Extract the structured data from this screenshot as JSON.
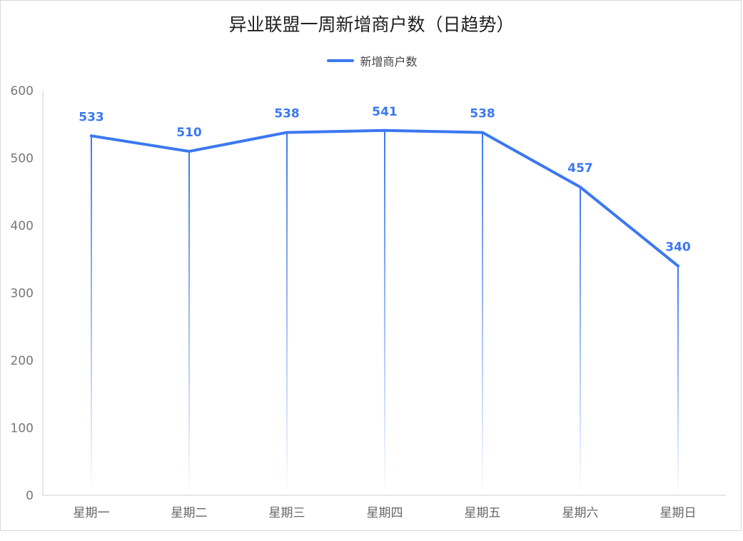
{
  "chart_data": {
    "type": "line",
    "title": "异业联盟一周新增商户数（日趋势）",
    "categories": [
      "星期一",
      "星期二",
      "星期三",
      "星期四",
      "星期五",
      "星期六",
      "星期日"
    ],
    "series": [
      {
        "name": "新增商户数",
        "values": [
          533,
          510,
          538,
          541,
          538,
          457,
          340
        ]
      }
    ],
    "ylim": [
      0,
      600
    ],
    "yticks": [
      0,
      100,
      200,
      300,
      400,
      500,
      600
    ],
    "xlabel": "",
    "ylabel": "",
    "grid": false,
    "legend": "top",
    "data_labels": true,
    "drop_lines": true
  },
  "colors": {
    "series": "#3b78f0",
    "axis": "#cfcfcf"
  }
}
